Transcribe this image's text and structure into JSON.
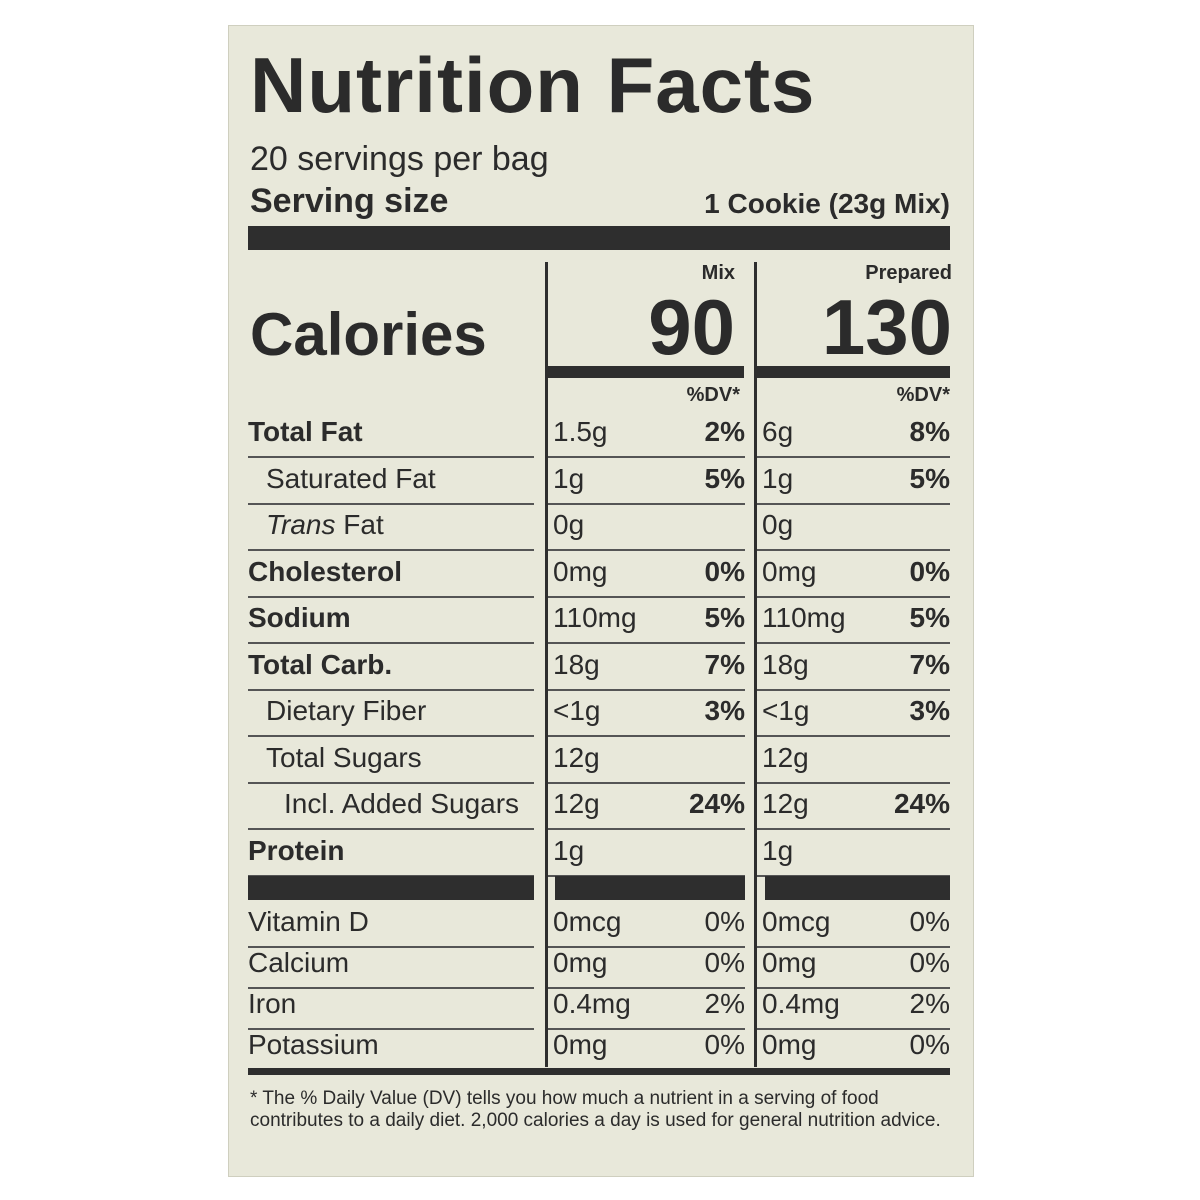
{
  "title": "Nutrition Facts",
  "servings": "20 servings per bag",
  "serving_size_label": "Serving size",
  "serving_size_value": "1 Cookie (23g Mix)",
  "calories_label": "Calories",
  "columns": [
    {
      "header": "Mix",
      "calories": "90",
      "dv_header": "%DV*"
    },
    {
      "header": "Prepared",
      "calories": "130",
      "dv_header": "%DV*"
    }
  ],
  "nutrients": [
    {
      "name": "Total Fat",
      "bold": true,
      "indent": 0,
      "mix": "1.5g",
      "mix_dv": "2%",
      "prep": "6g",
      "prep_dv": "8%"
    },
    {
      "name": "Saturated Fat",
      "bold": false,
      "indent": 1,
      "mix": "1g",
      "mix_dv": "5%",
      "prep": "1g",
      "prep_dv": "5%"
    },
    {
      "name": "Trans Fat",
      "bold": false,
      "indent": 1,
      "mix": "0g",
      "mix_dv": "",
      "prep": "0g",
      "prep_dv": ""
    },
    {
      "name": "Cholesterol",
      "bold": true,
      "indent": 0,
      "mix": "0mg",
      "mix_dv": "0%",
      "prep": "0mg",
      "prep_dv": "0%"
    },
    {
      "name": "Sodium",
      "bold": true,
      "indent": 0,
      "mix": "110mg",
      "mix_dv": "5%",
      "prep": "110mg",
      "prep_dv": "5%"
    },
    {
      "name": "Total Carb.",
      "bold": true,
      "indent": 0,
      "mix": "18g",
      "mix_dv": "7%",
      "prep": "18g",
      "prep_dv": "7%"
    },
    {
      "name": "Dietary Fiber",
      "bold": false,
      "indent": 1,
      "mix": "<1g",
      "mix_dv": "3%",
      "prep": "<1g",
      "prep_dv": "3%"
    },
    {
      "name": "Total Sugars",
      "bold": false,
      "indent": 1,
      "mix": "12g",
      "mix_dv": "",
      "prep": "12g",
      "prep_dv": ""
    },
    {
      "name": "Incl. Added Sugars",
      "bold": false,
      "indent": 2,
      "mix": "12g",
      "mix_dv": "24%",
      "prep": "12g",
      "prep_dv": "24%"
    },
    {
      "name": "Protein",
      "bold": true,
      "indent": 0,
      "mix": "1g",
      "mix_dv": "",
      "prep": "1g",
      "prep_dv": ""
    }
  ],
  "vitamins": [
    {
      "name": "Vitamin D",
      "mix": "0mcg",
      "mix_dv": "0%",
      "prep": "0mcg",
      "prep_dv": "0%"
    },
    {
      "name": "Calcium",
      "mix": "0mg",
      "mix_dv": "0%",
      "prep": "0mg",
      "prep_dv": "0%"
    },
    {
      "name": "Iron",
      "mix": "0.4mg",
      "mix_dv": "2%",
      "prep": "0.4mg",
      "prep_dv": "2%"
    },
    {
      "name": "Potassium",
      "mix": "0mg",
      "mix_dv": "0%",
      "prep": "0mg",
      "prep_dv": "0%"
    }
  ],
  "footnote": "* The % Daily Value (DV) tells you how much a nutrient in a serving of food contributes to a daily diet. 2,000 calories a day is used for general nutrition advice."
}
